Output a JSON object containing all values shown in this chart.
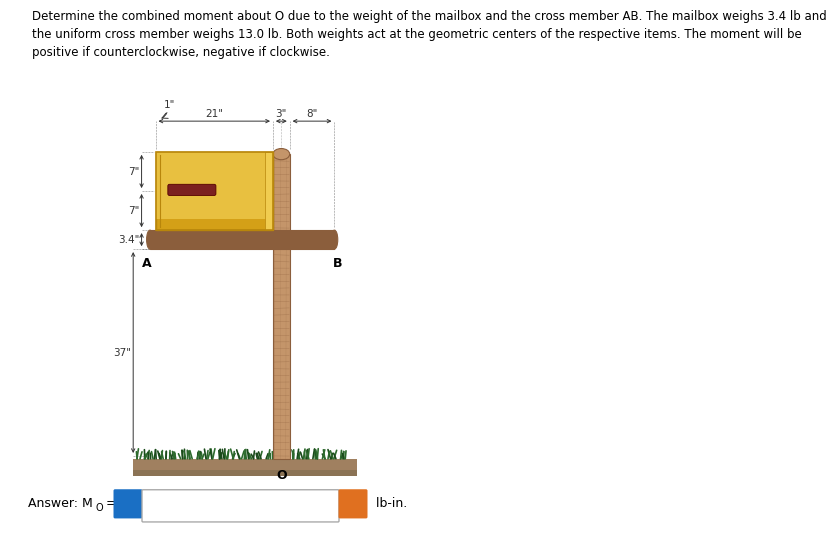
{
  "title_text": "Determine the combined moment about O due to the weight of the mailbox and the cross member AB. The mailbox weighs 3.4 lb and\nthe uniform cross member weighs 13.0 lb. Both weights act at the geometric centers of the respective items. The moment will be\npositive if counterclockwise, negative if clockwise.",
  "bg_color": "#ffffff",
  "dim_1": "1\"",
  "dim_21": "21\"",
  "dim_3": "3\"",
  "dim_8": "8\"",
  "dim_7a": "7\"",
  "dim_7b": "7\"",
  "dim_34": "3.4\"",
  "dim_37": "37\"",
  "label_A": "A",
  "label_B": "B",
  "label_O": "O",
  "mailbox_color": "#D4A017",
  "mailbox_highlight": "#E8C040",
  "mailbox_dark": "#B8860B",
  "mailbox_side": "#F0CC50",
  "post_color": "#C4956A",
  "post_dark": "#8B5E3C",
  "cross_color": "#8B5E3C",
  "cross_light": "#C4956A",
  "grass_color": "#2d6a2d",
  "grass_dark": "#1a4a1a",
  "ground_color": "#8B7355",
  "ground_light": "#A08060",
  "handle_color": "#7B2020",
  "info_btn_color": "#1a6fc4",
  "warn_btn_color": "#e07020",
  "dim_color": "#333333",
  "line_color": "#555555"
}
